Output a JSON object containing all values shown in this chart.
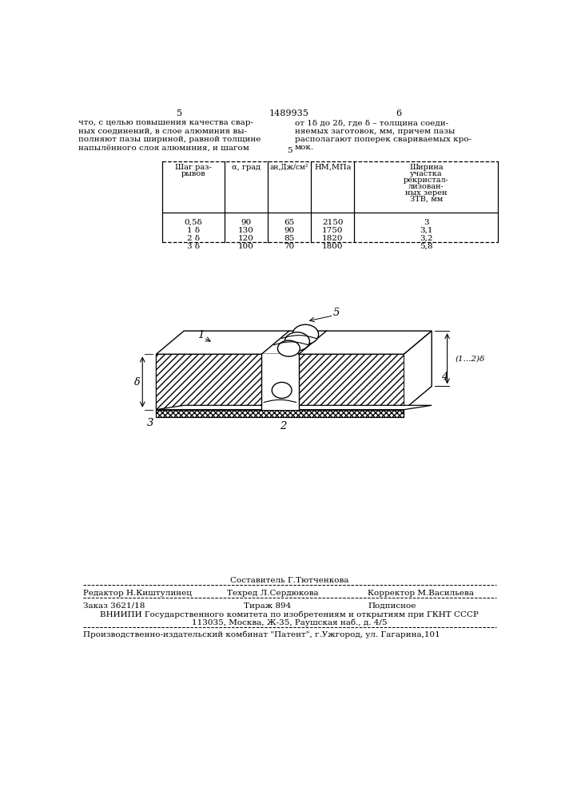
{
  "background_color": "#ffffff",
  "page_num_left": "5",
  "page_num_center": "1489935",
  "page_num_right": "6",
  "text_left": [
    "что, с целью повышения качества свар-",
    "ных соединений, в слое алюминия вы-",
    "полняют пазы шириной, равной толщине",
    "напылённого слоя алюминия, и шагом"
  ],
  "text_right": [
    "от 1δ до 2δ, где δ – толщина соеди-",
    "няемых заготовок, мм, причем пазы",
    "располагают поперек свариваемых кро-",
    "мок."
  ],
  "col_headers_line1": [
    "Шаг раз-",
    "α, град",
    "ан,Дж/см²",
    "НМ,МПа",
    "Ширина"
  ],
  "col_headers_line2": [
    "рывов",
    "",
    "",
    "",
    "участка"
  ],
  "col_headers_line3": [
    "",
    "",
    "",
    "",
    "рекристал-"
  ],
  "col_headers_line4": [
    "",
    "",
    "",
    "",
    "лизован-"
  ],
  "col_headers_line5": [
    "",
    "",
    "",
    "",
    "ных зерен"
  ],
  "col_headers_line6": [
    "",
    "",
    "",
    "",
    "ЗТВ, мм"
  ],
  "table_rows": [
    [
      "0,5δ",
      "90",
      "65",
      "2150",
      "3"
    ],
    [
      "1 δ",
      "130",
      "90",
      "1750",
      "3,1"
    ],
    [
      "2 δ",
      "120",
      "85",
      "1820",
      "3,2"
    ],
    [
      "3 δ",
      "100",
      "70",
      "1800",
      "5,8"
    ]
  ],
  "composer": "Составитель Г.Тютченкова",
  "editor": "Редактор Н.Киштулинец",
  "techred": "Техред Л.Сердюкова",
  "corrector": "Корректор М.Васильева",
  "order": "Заказ 3621/18",
  "tirazh": "Тираж 894",
  "podpisnoe": "Подписное",
  "vniiipi1": "ВНИИПИ Государственного комитета по изобретениям и открытиям при ГКНТ СССР",
  "vniiipi2": "113035, Москва, Ж-35, Раушская наб., д. 4/5",
  "patent": "Производственно-издательский комбинат \"Патент\", г.Ужгород, ул. Гагарина,101"
}
